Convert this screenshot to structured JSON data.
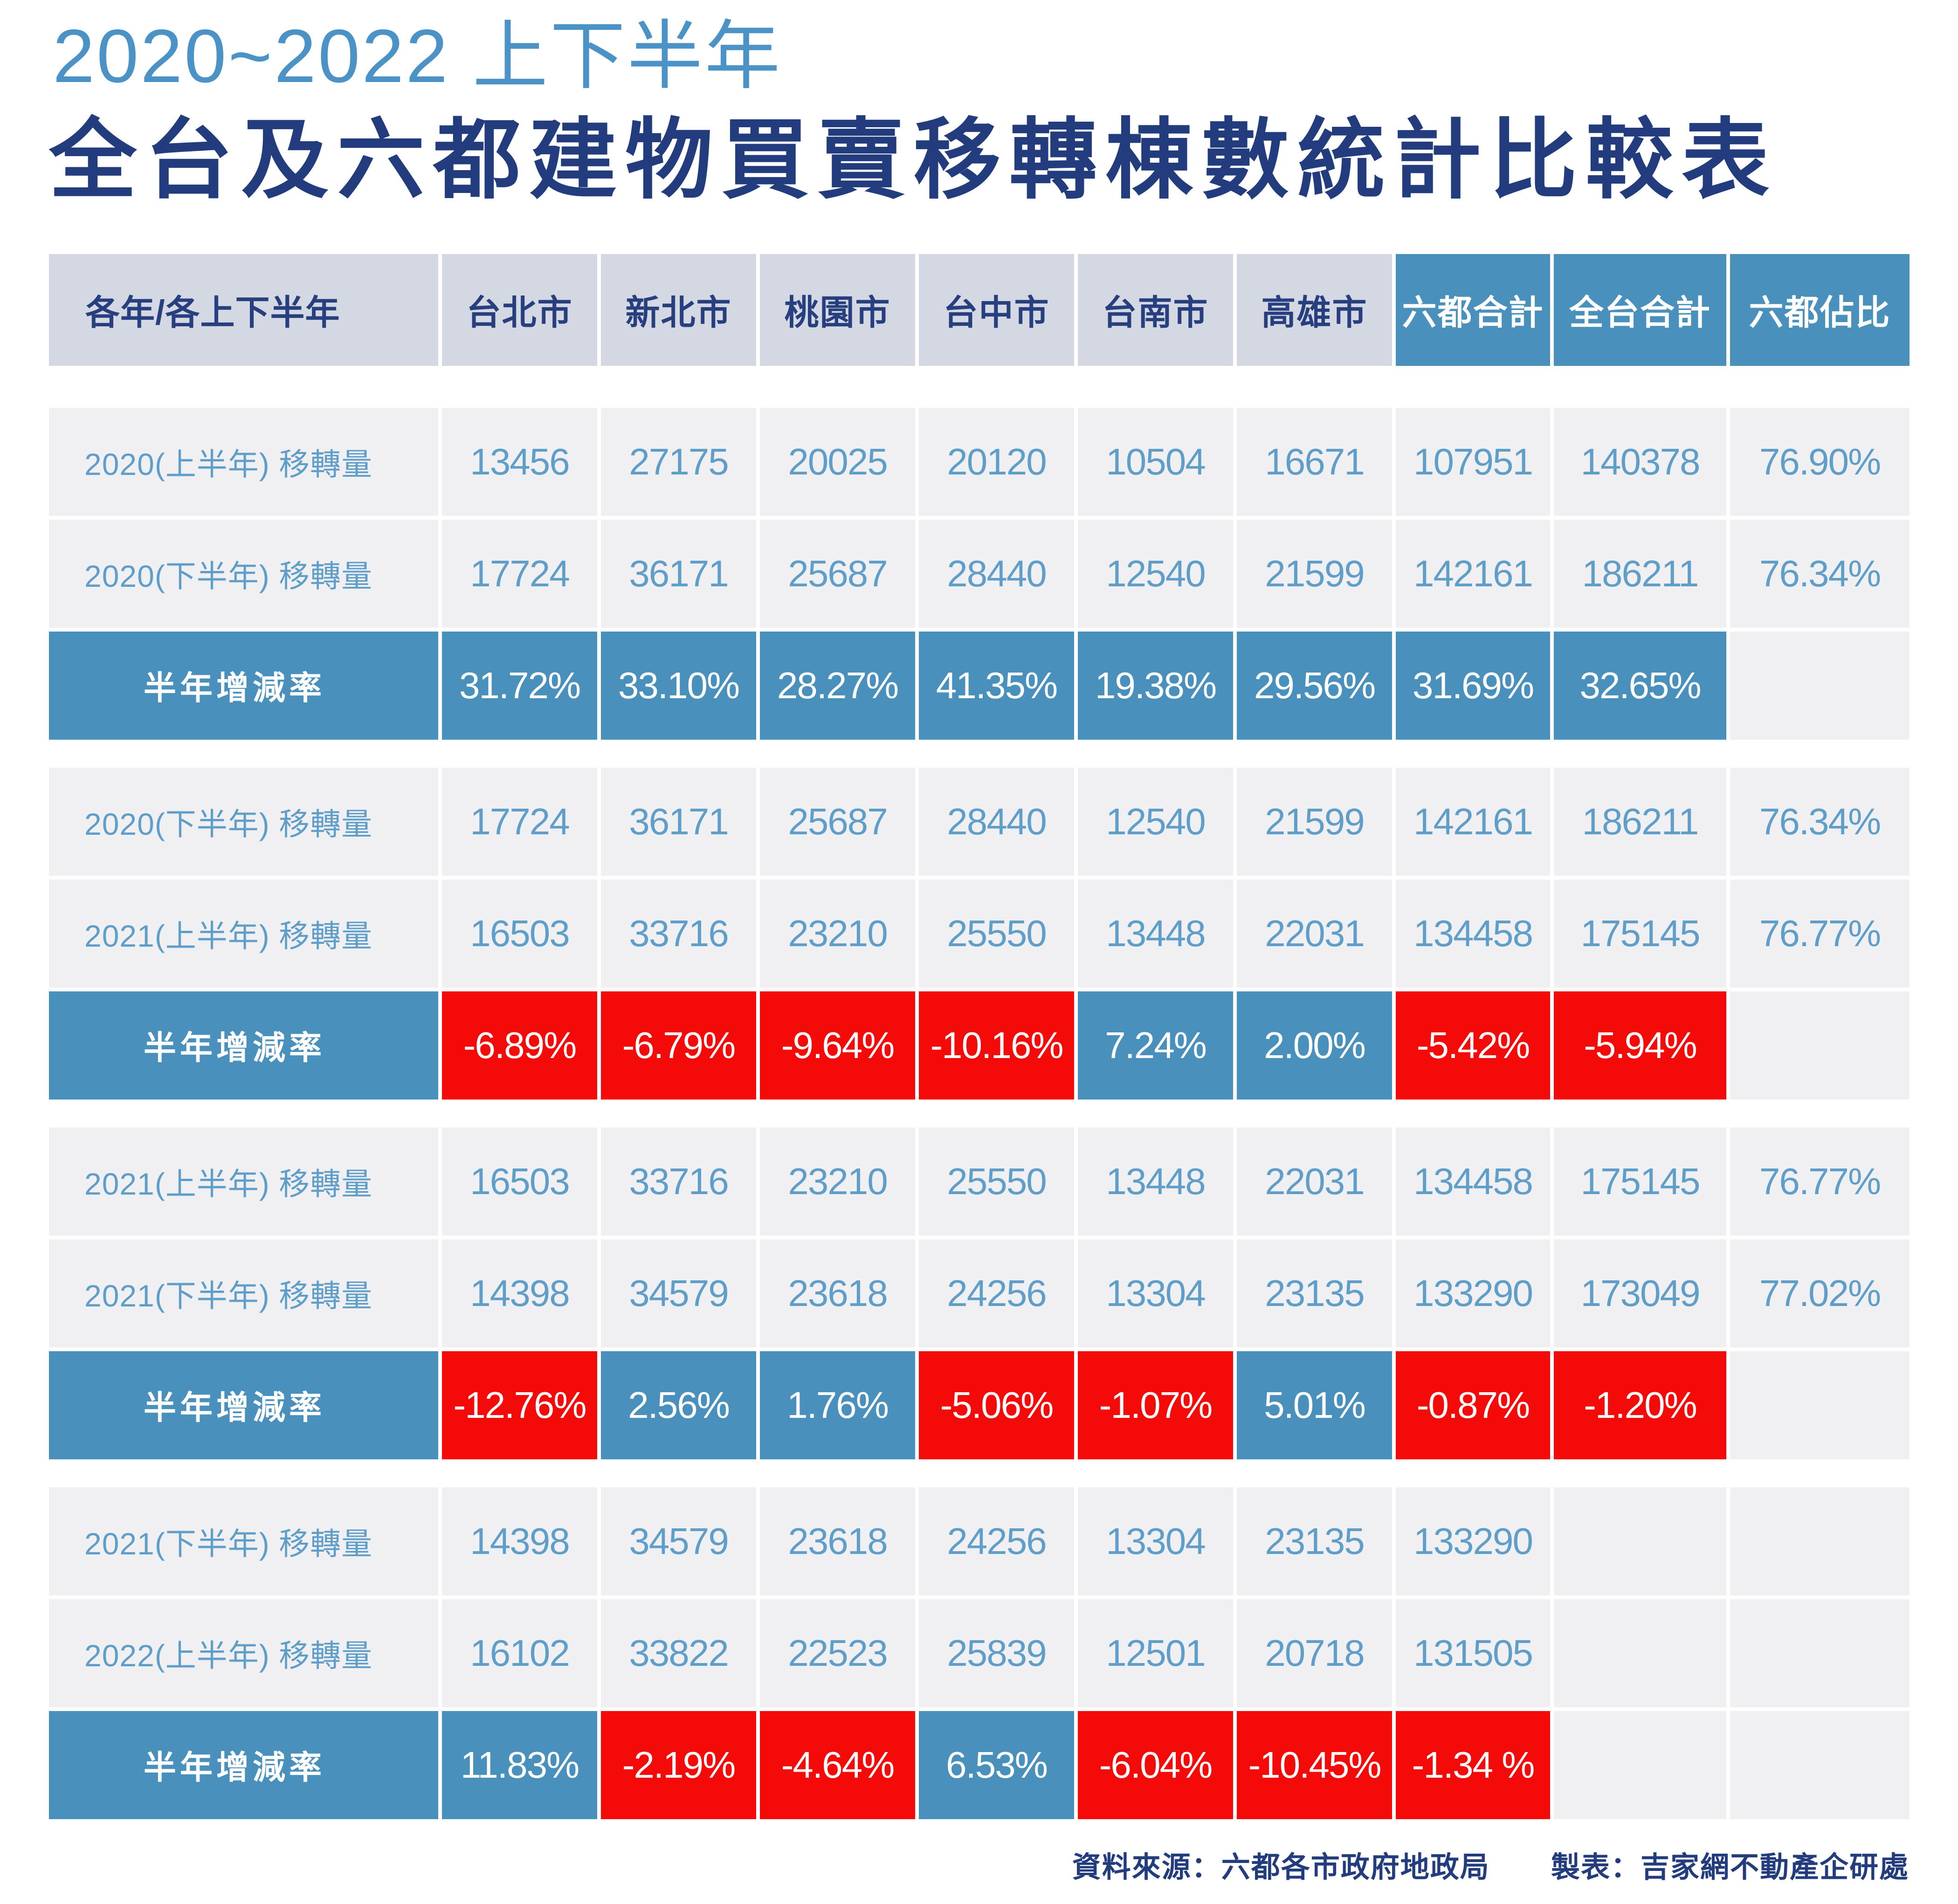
{
  "title": {
    "line1": "2020~2022 上下半年",
    "line2": "全台及六都建物買賣移轉棟數統計比較表"
  },
  "colors": {
    "title_blue": "#4b93c6",
    "navy": "#233c7e",
    "header_bg": "#d3d8e2",
    "accent_blue": "#4a90bc",
    "negative_red": "#f50a0a",
    "row_bg": "#f0eff2",
    "row_text_blue": "#5f9ec9"
  },
  "chart_data": {
    "type": "table",
    "title": "2020~2022 上下半年 全台及六都建物買賣移轉棟數統計比較表",
    "columns": [
      "各年/各上下半年",
      "台北市",
      "新北市",
      "桃園市",
      "台中市",
      "台南市",
      "高雄市",
      "六都合計",
      "全台合計",
      "六都佔比"
    ],
    "groups": [
      {
        "rows": [
          {
            "label": "2020(上半年) 移轉量",
            "values": [
              "13456",
              "27175",
              "20025",
              "20120",
              "10504",
              "16671",
              "107951",
              "140378",
              "76.90%"
            ]
          },
          {
            "label": "2020(下半年) 移轉量",
            "values": [
              "17724",
              "36171",
              "25687",
              "28440",
              "12540",
              "21599",
              "142161",
              "186211",
              "76.34%"
            ]
          }
        ],
        "rate": {
          "label": "半年增減率",
          "cells": [
            {
              "v": "31.72%",
              "c": "blue"
            },
            {
              "v": "33.10%",
              "c": "blue"
            },
            {
              "v": "28.27%",
              "c": "blue"
            },
            {
              "v": "41.35%",
              "c": "blue"
            },
            {
              "v": "19.38%",
              "c": "blue"
            },
            {
              "v": "29.56%",
              "c": "blue"
            },
            {
              "v": "31.69%",
              "c": "blue"
            },
            {
              "v": "32.65%",
              "c": "blue"
            },
            {
              "v": "",
              "c": "gray"
            }
          ]
        }
      },
      {
        "rows": [
          {
            "label": "2020(下半年) 移轉量",
            "values": [
              "17724",
              "36171",
              "25687",
              "28440",
              "12540",
              "21599",
              "142161",
              "186211",
              "76.34%"
            ]
          },
          {
            "label": "2021(上半年) 移轉量",
            "values": [
              "16503",
              "33716",
              "23210",
              "25550",
              "13448",
              "22031",
              "134458",
              "175145",
              "76.77%"
            ]
          }
        ],
        "rate": {
          "label": "半年增減率",
          "cells": [
            {
              "v": "-6.89%",
              "c": "red"
            },
            {
              "v": "-6.79%",
              "c": "red"
            },
            {
              "v": "-9.64%",
              "c": "red"
            },
            {
              "v": "-10.16%",
              "c": "red"
            },
            {
              "v": "7.24%",
              "c": "blue"
            },
            {
              "v": "2.00%",
              "c": "blue"
            },
            {
              "v": "-5.42%",
              "c": "red"
            },
            {
              "v": "-5.94%",
              "c": "red"
            },
            {
              "v": "",
              "c": "gray"
            }
          ]
        }
      },
      {
        "rows": [
          {
            "label": "2021(上半年) 移轉量",
            "values": [
              "16503",
              "33716",
              "23210",
              "25550",
              "13448",
              "22031",
              "134458",
              "175145",
              "76.77%"
            ]
          },
          {
            "label": "2021(下半年) 移轉量",
            "values": [
              "14398",
              "34579",
              "23618",
              "24256",
              "13304",
              "23135",
              "133290",
              "173049",
              "77.02%"
            ]
          }
        ],
        "rate": {
          "label": "半年增減率",
          "cells": [
            {
              "v": "-12.76%",
              "c": "red"
            },
            {
              "v": "2.56%",
              "c": "blue"
            },
            {
              "v": "1.76%",
              "c": "blue"
            },
            {
              "v": "-5.06%",
              "c": "red"
            },
            {
              "v": "-1.07%",
              "c": "red"
            },
            {
              "v": "5.01%",
              "c": "blue"
            },
            {
              "v": "-0.87%",
              "c": "red"
            },
            {
              "v": "-1.20%",
              "c": "red"
            },
            {
              "v": "",
              "c": "gray"
            }
          ]
        }
      },
      {
        "rows": [
          {
            "label": "2021(下半年) 移轉量",
            "values": [
              "14398",
              "34579",
              "23618",
              "24256",
              "13304",
              "23135",
              "133290",
              "",
              ""
            ]
          },
          {
            "label": "2022(上半年) 移轉量",
            "values": [
              "16102",
              "33822",
              "22523",
              "25839",
              "12501",
              "20718",
              "131505",
              "",
              ""
            ]
          }
        ],
        "rate": {
          "label": "半年增減率",
          "cells": [
            {
              "v": "11.83%",
              "c": "blue"
            },
            {
              "v": "-2.19%",
              "c": "red"
            },
            {
              "v": "-4.64%",
              "c": "red"
            },
            {
              "v": "6.53%",
              "c": "blue"
            },
            {
              "v": "-6.04%",
              "c": "red"
            },
            {
              "v": "-10.45%",
              "c": "red"
            },
            {
              "v": "-1.34 %",
              "c": "red"
            },
            {
              "v": "",
              "c": "gray"
            },
            {
              "v": "",
              "c": "gray"
            }
          ]
        }
      }
    ]
  },
  "footer": {
    "source": "資料來源：六都各市政府地政局",
    "maker": "製表：吉家網不動產企研處"
  }
}
